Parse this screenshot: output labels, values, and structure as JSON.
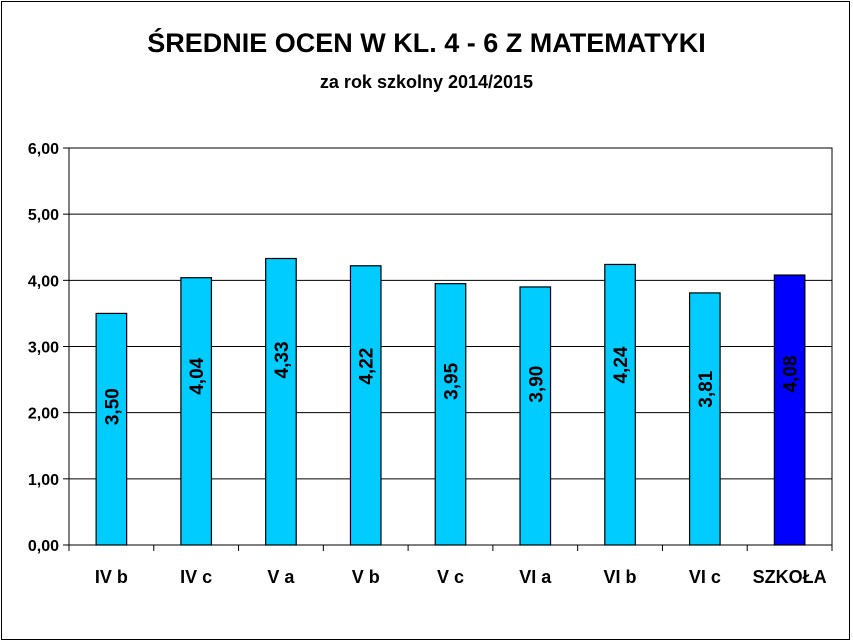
{
  "chart_data": {
    "type": "bar",
    "title": "ŚREDNIE OCEN  W KL. 4 - 6  Z  MATEMATYKI",
    "subtitle": "za rok szkolny 2014/2015",
    "categories": [
      "IV b",
      "IV c",
      "V a",
      "V b",
      "V c",
      "VI a",
      "VI b",
      "VI c",
      "SZKOŁA"
    ],
    "values": [
      3.5,
      4.04,
      4.33,
      4.22,
      3.95,
      3.9,
      4.24,
      3.81,
      4.08
    ],
    "value_labels": [
      "3,50",
      "4,04",
      "4,33",
      "4,22",
      "3,95",
      "3,90",
      "4,24",
      "3,81",
      "4,08"
    ],
    "ylim": [
      0,
      6
    ],
    "yticks": [
      "0,00",
      "1,00",
      "2,00",
      "3,00",
      "4,00",
      "5,00",
      "6,00"
    ],
    "grid": true,
    "colors": {
      "bar": "#00CCFF",
      "highlight": "#0000FF",
      "border": "#000000",
      "grid": "#000000"
    },
    "highlight_category": "SZKOŁA"
  }
}
